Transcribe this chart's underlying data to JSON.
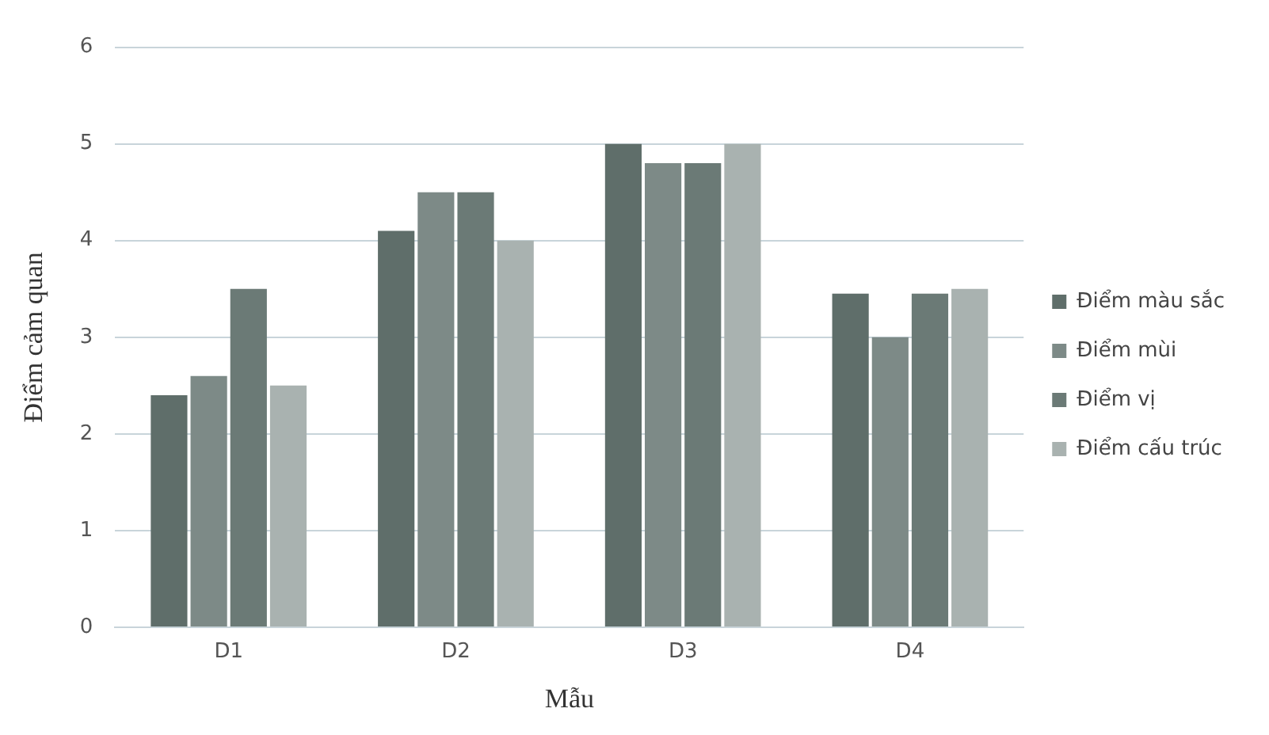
{
  "chart_data": {
    "type": "bar",
    "xlabel": "Mẫu",
    "ylabel": "Điểm cảm quan",
    "categories": [
      "D1",
      "D2",
      "D3",
      "D4"
    ],
    "series": [
      {
        "name": "Điểm màu sắc",
        "color": "#5f6e6a",
        "values": [
          2.4,
          4.1,
          5.0,
          3.45
        ]
      },
      {
        "name": "Điểm mùi",
        "color": "#7d8a87",
        "values": [
          2.6,
          4.5,
          4.8,
          3.0
        ]
      },
      {
        "name": "Điểm vị",
        "color": "#6b7a76",
        "values": [
          3.5,
          4.5,
          4.8,
          3.45
        ]
      },
      {
        "name": "Điểm cấu trúc",
        "color": "#a9b2b0",
        "values": [
          2.5,
          4.0,
          5.0,
          3.5
        ]
      }
    ],
    "ylim": [
      0,
      6
    ],
    "yticks": [
      0,
      1,
      2,
      3,
      4,
      5,
      6
    ],
    "grid": "y",
    "legend": "right"
  }
}
